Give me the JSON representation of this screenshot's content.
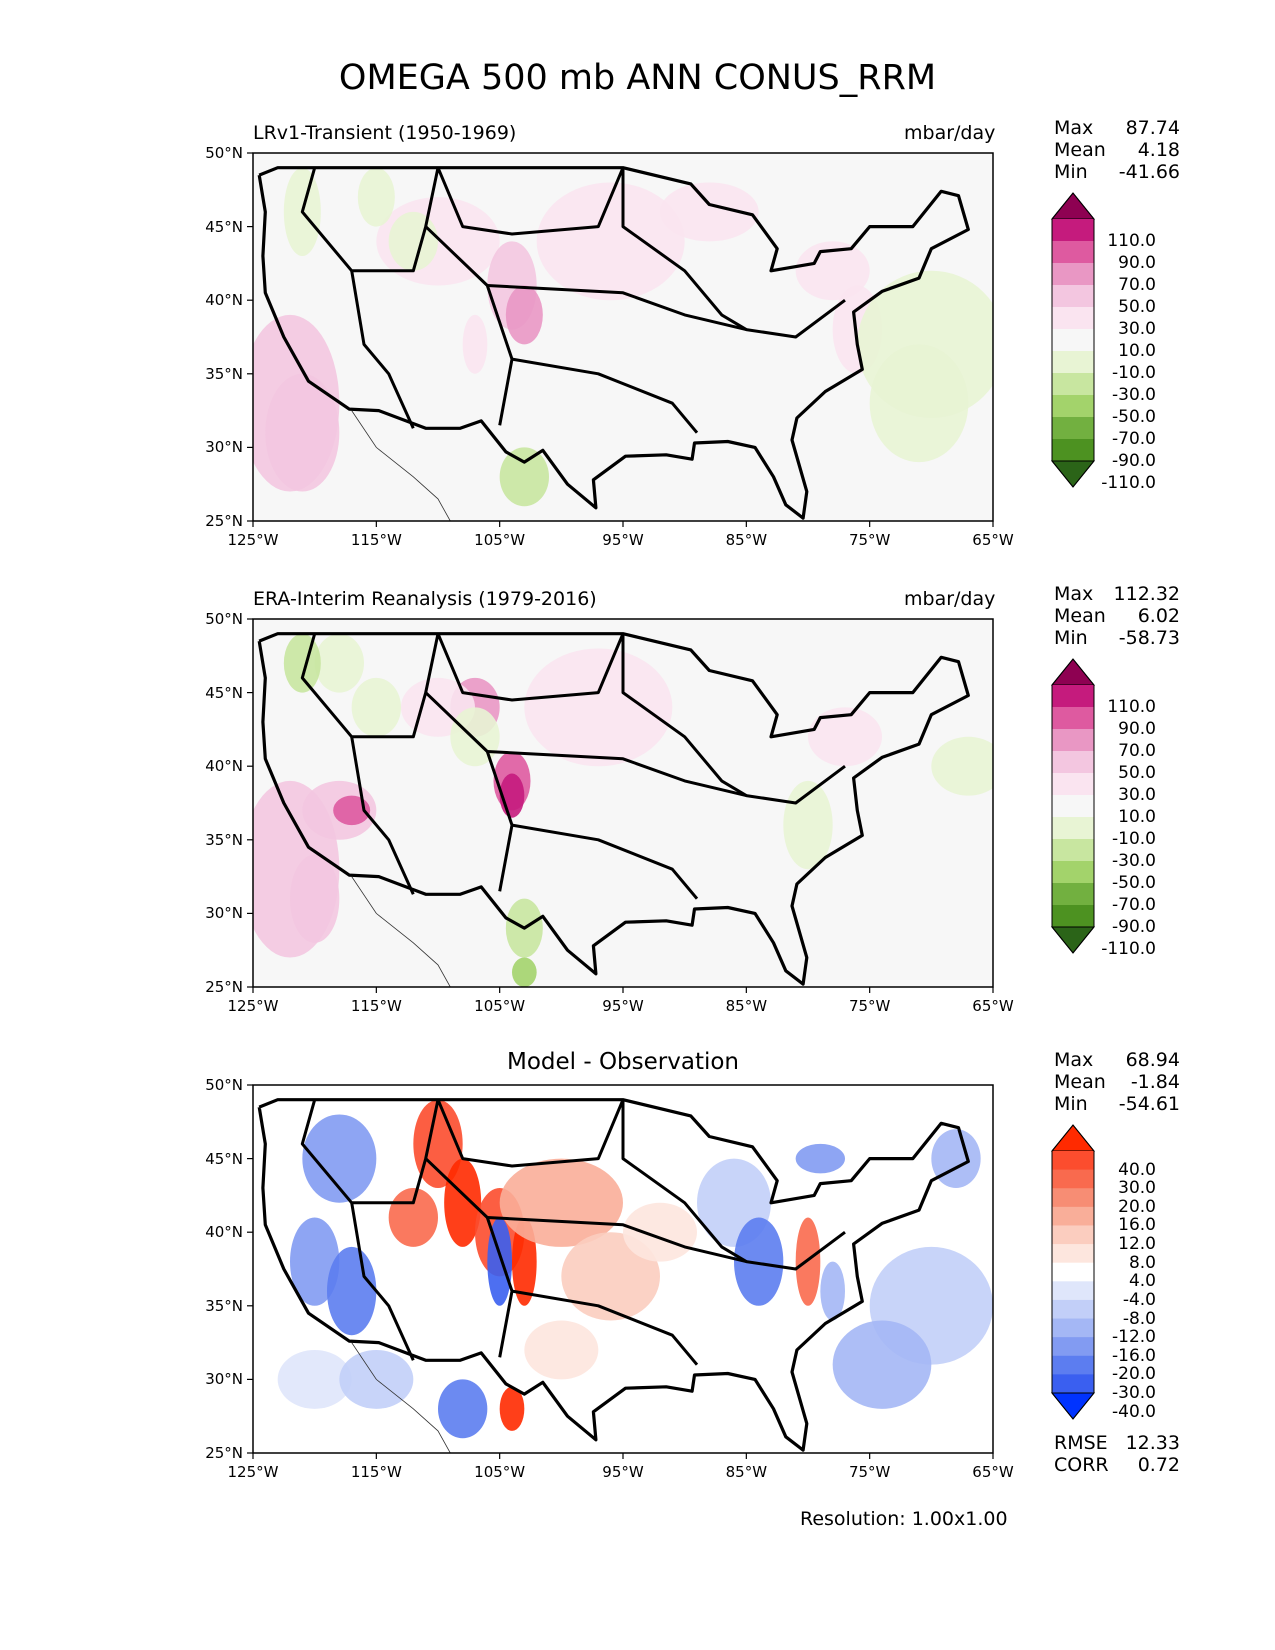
{
  "title": "OMEGA 500 mb ANN CONUS_RRM",
  "resolution": "Resolution: 1.00x1.00",
  "chart_data": [
    {
      "type": "heatmap",
      "title": "LRv1-Transient (1950-1969)",
      "units": "mbar/day",
      "lat_range": [
        25,
        50
      ],
      "lon_range": [
        -125,
        -65
      ],
      "ytick_labels": [
        "50°N",
        "45°N",
        "40°N",
        "35°N",
        "30°N",
        "25°N"
      ],
      "xtick_labels": [
        "125°W",
        "115°W",
        "105°W",
        "95°W",
        "85°W",
        "75°W",
        "65°W"
      ],
      "stats": {
        "max_label": "Max",
        "max": "87.74",
        "mean_label": "Mean",
        "mean": "4.18",
        "min_label": "Min",
        "min": "-41.66"
      },
      "colorbar": {
        "levels": [
          "110.0",
          "90.0",
          "70.0",
          "50.0",
          "30.0",
          "10.0",
          "-10.0",
          "-30.0",
          "-50.0",
          "-70.0",
          "-90.0",
          "-110.0"
        ],
        "colors": [
          "#8e0152",
          "#c51b7d",
          "#de5aa0",
          "#e997c4",
          "#f3c6e0",
          "#fae4f0",
          "#f7f7f7",
          "#e8f4d4",
          "#c8e6a0",
          "#a3d36b",
          "#72b040",
          "#4d9221",
          "#2b6418"
        ]
      }
    },
    {
      "type": "heatmap",
      "title": "ERA-Interim Reanalysis (1979-2016)",
      "units": "mbar/day",
      "lat_range": [
        25,
        50
      ],
      "lon_range": [
        -125,
        -65
      ],
      "ytick_labels": [
        "50°N",
        "45°N",
        "40°N",
        "35°N",
        "30°N",
        "25°N"
      ],
      "xtick_labels": [
        "125°W",
        "115°W",
        "105°W",
        "95°W",
        "85°W",
        "75°W",
        "65°W"
      ],
      "stats": {
        "max_label": "Max",
        "max": "112.32",
        "mean_label": "Mean",
        "mean": "6.02",
        "min_label": "Min",
        "min": "-58.73"
      },
      "colorbar": {
        "levels": [
          "110.0",
          "90.0",
          "70.0",
          "50.0",
          "30.0",
          "10.0",
          "-10.0",
          "-30.0",
          "-50.0",
          "-70.0",
          "-90.0",
          "-110.0"
        ],
        "colors": [
          "#8e0152",
          "#c51b7d",
          "#de5aa0",
          "#e997c4",
          "#f3c6e0",
          "#fae4f0",
          "#f7f7f7",
          "#e8f4d4",
          "#c8e6a0",
          "#a3d36b",
          "#72b040",
          "#4d9221",
          "#2b6418"
        ]
      }
    },
    {
      "type": "heatmap",
      "title": "Model - Observation",
      "units": "",
      "lat_range": [
        25,
        50
      ],
      "lon_range": [
        -125,
        -65
      ],
      "ytick_labels": [
        "50°N",
        "45°N",
        "40°N",
        "35°N",
        "30°N",
        "25°N"
      ],
      "xtick_labels": [
        "125°W",
        "115°W",
        "105°W",
        "95°W",
        "85°W",
        "75°W",
        "65°W"
      ],
      "stats": {
        "max_label": "Max",
        "max": "68.94",
        "mean_label": "Mean",
        "mean": "-1.84",
        "min_label": "Min",
        "min": "-54.61",
        "rmse_label": "RMSE",
        "rmse": "12.33",
        "corr_label": "CORR",
        "corr": "0.72"
      },
      "colorbar": {
        "levels": [
          "40.0",
          "30.0",
          "20.0",
          "16.0",
          "12.0",
          "8.0",
          "4.0",
          "-4.0",
          "-8.0",
          "-12.0",
          "-16.0",
          "-20.0",
          "-30.0",
          "-40.0"
        ],
        "colors": [
          "#ff2a00",
          "#fc4d2e",
          "#f96a4e",
          "#f78d74",
          "#f9ae99",
          "#fbcdbf",
          "#fde6de",
          "#ffffff",
          "#dfe6fb",
          "#c2cff8",
          "#a4b7f5",
          "#829bf2",
          "#5c7df0",
          "#3a5ff0",
          "#0033ff"
        ]
      }
    }
  ]
}
